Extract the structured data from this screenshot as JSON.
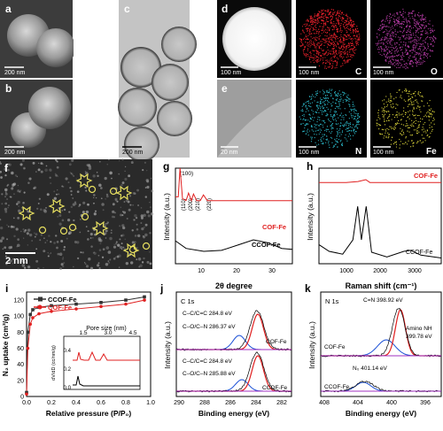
{
  "panels": {
    "a": {
      "letter": "a",
      "scale": "200 nm"
    },
    "b": {
      "letter": "b",
      "scale": "200 nm"
    },
    "c": {
      "letter": "c",
      "scale": "200 nm"
    },
    "d": {
      "letter": "d",
      "scale": "100 nm"
    },
    "e": {
      "letter": "e",
      "scale": "20 nm"
    },
    "map_c": {
      "scale": "100 nm",
      "element": "C",
      "color": "#e0202a"
    },
    "map_o": {
      "scale": "100 nm",
      "element": "O",
      "color": "#b03aa0"
    },
    "map_n": {
      "scale": "100 nm",
      "element": "N",
      "color": "#2bb6c6"
    },
    "map_fe": {
      "scale": "100 nm",
      "element": "Fe",
      "color": "#d9d33a"
    },
    "f": {
      "letter": "f",
      "scale": "2 nm"
    },
    "g": {
      "letter": "g",
      "ylabel": "Intensity (a.u.)",
      "xlabel": "2θ degree",
      "peak_labels": [
        "(100)",
        "(110)",
        "(200)",
        "(210)",
        "(220)"
      ],
      "legend_top": "COF-Fe",
      "legend_bottom": "CCOF-Fe",
      "xticks": [
        "10",
        "20",
        "30"
      ]
    },
    "h": {
      "letter": "h",
      "ylabel": "Intensity (a.u.)",
      "xlabel": "Raman shift (cm⁻¹)",
      "legend_top": "COF-Fe",
      "legend_bottom": "CCOF-Fe",
      "xticks": [
        "1000",
        "2000",
        "3000"
      ]
    },
    "i": {
      "letter": "i",
      "ylabel": "N₂ uptake (cm³/g)",
      "xlabel": "Relative pressure (P/P₀)",
      "legend": [
        "CCOF-Fe",
        "COF-Fe"
      ],
      "yticks": [
        "0",
        "20",
        "40",
        "60",
        "80",
        "100",
        "120"
      ],
      "xticks": [
        "0.0",
        "0.2",
        "0.4",
        "0.6",
        "0.8",
        "1.0"
      ],
      "inset_title": "Pore size (nm)",
      "inset_ylabel": "dV/dD (cc/nm/g)",
      "inset_xticks": [
        "1.5",
        "3.0",
        "4.5"
      ],
      "inset_yticks": [
        "0.0",
        "0.2",
        "0.4"
      ]
    },
    "j": {
      "letter": "j",
      "title": "C 1s",
      "ylabel": "Intensity (a.u.)",
      "xlabel": "Binding energy (eV)",
      "top_labels": [
        "C–C/C=C  284.8 eV",
        "C–O/C–N  286.37 eV"
      ],
      "bottom_labels": [
        "C–C/C=C  284.8 eV",
        "C–O/C–N  285.88 eV"
      ],
      "top_sample": "COF-Fe",
      "bottom_sample": "CCOF-Fe",
      "xticks": [
        "290",
        "288",
        "286",
        "284",
        "282"
      ]
    },
    "k": {
      "letter": "k",
      "title": "N 1s",
      "ylabel": "Intensity (a.u.)",
      "xlabel": "Binding energy (eV)",
      "top_label1": "C=N 398.92 eV",
      "top_label2": "Amino NH",
      "top_label3": "399.78 eV",
      "bottom_label": "N₀ 401.14 eV",
      "top_sample": "COF-Fe",
      "bottom_sample": "CCOF-Fe",
      "xticks": [
        "408",
        "404",
        "400",
        "396"
      ]
    }
  },
  "chart_data": [
    {
      "type": "line",
      "ylabel": "Intensity (a.u.)",
      "xlabel": "2θ degree",
      "xlim": [
        2,
        35
      ],
      "series": [
        {
          "name": "COF-Fe",
          "x": [
            2,
            2.8,
            3.3,
            4,
            5,
            5.7,
            6.5,
            7.1,
            8,
            9,
            9.9,
            11,
            15,
            20,
            25,
            30,
            35
          ],
          "y": [
            0.7,
            0.7,
            1.0,
            0.68,
            0.66,
            0.74,
            0.66,
            0.73,
            0.66,
            0.66,
            0.72,
            0.66,
            0.66,
            0.66,
            0.66,
            0.66,
            0.66
          ]
        },
        {
          "name": "CCOF-Fe",
          "x": [
            2,
            5,
            10,
            15,
            20,
            24,
            28,
            32,
            35
          ],
          "y": [
            0.24,
            0.16,
            0.13,
            0.14,
            0.2,
            0.25,
            0.22,
            0.16,
            0.15
          ]
        }
      ]
    },
    {
      "type": "line",
      "ylabel": "Intensity (a.u.)",
      "xlabel": "Raman shift (cm⁻¹)",
      "xlim": [
        200,
        3800
      ],
      "series": [
        {
          "name": "COF-Fe",
          "x": [
            200,
            1000,
            1350,
            1580,
            1700,
            2500,
            3000,
            3800
          ],
          "y": [
            0.85,
            0.85,
            0.86,
            0.88,
            0.85,
            0.85,
            0.85,
            0.85
          ]
        },
        {
          "name": "CCOF-Fe",
          "x": [
            200,
            500,
            900,
            1200,
            1340,
            1450,
            1590,
            1750,
            2200,
            2700,
            2900,
            3200,
            3800
          ],
          "y": [
            0.2,
            0.13,
            0.1,
            0.25,
            0.6,
            0.25,
            0.6,
            0.12,
            0.07,
            0.13,
            0.14,
            0.09,
            0.06
          ]
        }
      ]
    },
    {
      "type": "line",
      "ylabel": "N₂ uptake (cm³/g)",
      "xlabel": "Relative pressure (P/P₀)",
      "xlim": [
        0,
        1
      ],
      "ylim": [
        0,
        130
      ],
      "series": [
        {
          "name": "CCOF-Fe",
          "x": [
            0.0,
            0.01,
            0.03,
            0.05,
            0.1,
            0.2,
            0.4,
            0.6,
            0.8,
            0.95
          ],
          "y": [
            5,
            80,
            102,
            108,
            111,
            113,
            115,
            117,
            120,
            124
          ]
        },
        {
          "name": "COF-Fe",
          "x": [
            0.0,
            0.01,
            0.03,
            0.05,
            0.1,
            0.2,
            0.4,
            0.6,
            0.8,
            0.95
          ],
          "y": [
            3,
            60,
            90,
            98,
            103,
            106,
            109,
            112,
            115,
            120
          ]
        }
      ]
    },
    {
      "type": "line",
      "title": "C 1s",
      "xlabel": "Binding energy (eV)",
      "xlim": [
        290,
        281
      ],
      "series": [
        {
          "name": "COF-Fe",
          "x": [
            290,
            288,
            286.5,
            285.5,
            284.8,
            284,
            283,
            281
          ],
          "y": [
            0.56,
            0.58,
            0.62,
            0.75,
            0.88,
            0.7,
            0.58,
            0.56
          ]
        },
        {
          "name": "CCOF-Fe",
          "x": [
            290,
            288,
            286.5,
            285.5,
            284.8,
            284,
            283,
            281
          ],
          "y": [
            0.06,
            0.08,
            0.12,
            0.27,
            0.42,
            0.22,
            0.08,
            0.06
          ]
        }
      ]
    },
    {
      "type": "line",
      "title": "N 1s",
      "xlabel": "Binding energy (eV)",
      "xlim": [
        408,
        394
      ],
      "series": [
        {
          "name": "COF-Fe",
          "x": [
            408,
            404,
            401,
            400,
            398.9,
            398,
            396,
            394
          ],
          "y": [
            0.58,
            0.58,
            0.62,
            0.72,
            0.86,
            0.68,
            0.6,
            0.6
          ]
        },
        {
          "name": "CCOF-Fe",
          "x": [
            408,
            404,
            402,
            401.1,
            400,
            398,
            396,
            394
          ],
          "y": [
            0.06,
            0.07,
            0.09,
            0.13,
            0.1,
            0.08,
            0.07,
            0.07
          ]
        }
      ]
    }
  ]
}
